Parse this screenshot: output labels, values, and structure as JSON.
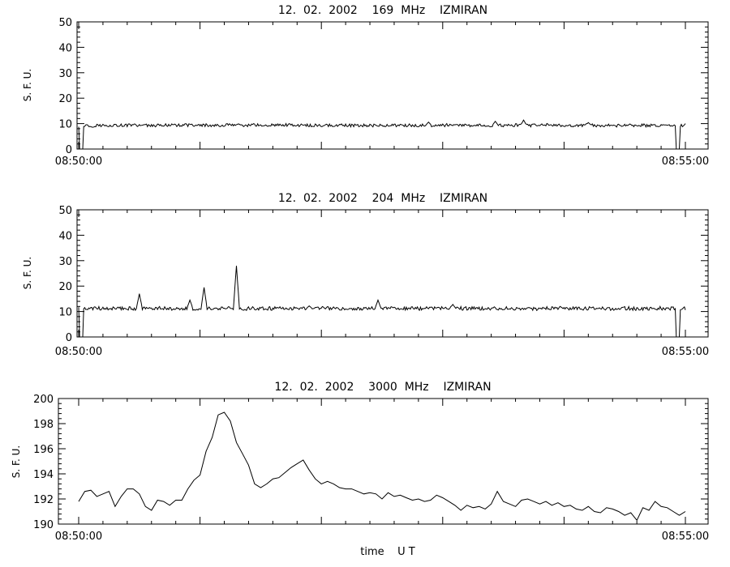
{
  "chart_data": [
    {
      "type": "line",
      "title": "12.  02.  2002    169  MHz    IZMIRAN",
      "ylabel": "S. F. U.",
      "xlabel": "",
      "ylim": [
        0,
        50
      ],
      "yticks": [
        0,
        10,
        20,
        30,
        40,
        50
      ],
      "x_start_label": "08:50:00",
      "x_end_label": "08:55:00",
      "x_range_seconds": [
        0,
        300
      ],
      "baseline": 9.3,
      "noise": 0.6,
      "dropouts": [
        {
          "t": 1.2,
          "v": 0
        },
        {
          "t": 296.2,
          "v": 0
        }
      ],
      "peaks": [
        {
          "t": 79,
          "v": 9.9
        },
        {
          "t": 173,
          "v": 10.6
        },
        {
          "t": 206,
          "v": 10.9
        },
        {
          "t": 220,
          "v": 11.4
        },
        {
          "t": 252,
          "v": 10.4
        }
      ]
    },
    {
      "type": "line",
      "title": "12.  02.  2002    204  MHz    IZMIRAN",
      "ylabel": "S. F. U.",
      "xlabel": "",
      "ylim": [
        0,
        50
      ],
      "yticks": [
        0,
        10,
        20,
        30,
        40,
        50
      ],
      "x_start_label": "08:50:00",
      "x_end_label": "08:55:00",
      "x_range_seconds": [
        0,
        300
      ],
      "baseline": 11.2,
      "noise": 0.7,
      "dropouts": [
        {
          "t": 1.2,
          "v": 0
        },
        {
          "t": 296.2,
          "v": 0
        }
      ],
      "peaks": [
        {
          "t": 30,
          "v": 17
        },
        {
          "t": 55,
          "v": 14.5
        },
        {
          "t": 62,
          "v": 19.5
        },
        {
          "t": 78,
          "v": 28
        },
        {
          "t": 114,
          "v": 12.2
        },
        {
          "t": 148,
          "v": 14.5
        },
        {
          "t": 185,
          "v": 12.8
        }
      ]
    },
    {
      "type": "line",
      "title": "12.  02.  2002    3000  MHz    IZMIRAN",
      "ylabel": "S. F. U.",
      "xlabel": "time    U T",
      "ylim": [
        190,
        200
      ],
      "yticks": [
        190,
        192,
        194,
        196,
        198,
        200
      ],
      "x_start_label": "08:50:00",
      "x_end_label": "08:55:00",
      "x_range_seconds": [
        0,
        300
      ],
      "x": [
        0,
        3,
        6,
        9,
        12,
        15,
        18,
        21,
        24,
        27,
        30,
        33,
        36,
        39,
        42,
        45,
        48,
        51,
        54,
        57,
        60,
        63,
        66,
        69,
        72,
        75,
        78,
        81,
        84,
        87,
        90,
        93,
        96,
        99,
        102,
        105,
        108,
        111,
        114,
        117,
        120,
        123,
        126,
        129,
        132,
        135,
        138,
        141,
        144,
        147,
        150,
        153,
        156,
        159,
        162,
        165,
        168,
        171,
        174,
        177,
        180,
        183,
        186,
        189,
        192,
        195,
        198,
        201,
        204,
        207,
        210,
        213,
        216,
        219,
        222,
        225,
        228,
        231,
        234,
        237,
        240,
        243,
        246,
        249,
        252,
        255,
        258,
        261,
        264,
        267,
        270,
        273,
        276,
        279,
        282,
        285,
        288,
        291,
        294,
        297,
        300
      ],
      "values": [
        191.8,
        192.6,
        192.7,
        192.2,
        192.4,
        192.6,
        191.4,
        192.2,
        192.8,
        192.8,
        192.4,
        191.4,
        191.1,
        191.9,
        191.8,
        191.5,
        191.9,
        191.9,
        192.8,
        193.5,
        193.9,
        195.8,
        196.9,
        198.7,
        198.9,
        198.2,
        196.5,
        195.6,
        194.7,
        193.2,
        192.9,
        193.2,
        193.6,
        193.7,
        194.1,
        194.5,
        194.8,
        195.1,
        194.3,
        193.6,
        193.2,
        193.4,
        193.2,
        192.9,
        192.8,
        192.8,
        192.6,
        192.4,
        192.5,
        192.4,
        192.0,
        192.5,
        192.2,
        192.3,
        192.1,
        191.9,
        192.0,
        191.8,
        191.9,
        192.3,
        192.1,
        191.8,
        191.5,
        191.1,
        191.5,
        191.3,
        191.4,
        191.2,
        191.6,
        192.6,
        191.8,
        191.6,
        191.4,
        191.9,
        192.0,
        191.8,
        191.6,
        191.8,
        191.5,
        191.7,
        191.4,
        191.5,
        191.2,
        191.1,
        191.4,
        191.0,
        190.9,
        191.3,
        191.2,
        191.0,
        190.7,
        190.9,
        190.3,
        191.3,
        191.1,
        191.8,
        191.4,
        191.3,
        191.0,
        190.7,
        191.0
      ]
    }
  ]
}
